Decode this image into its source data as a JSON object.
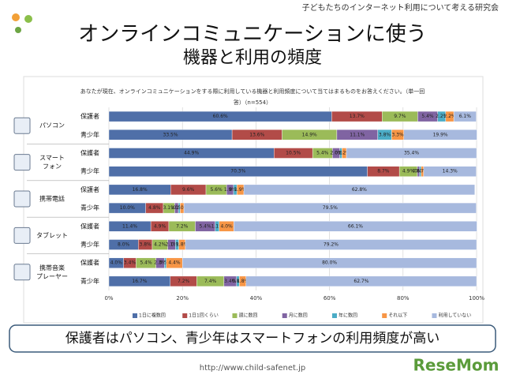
{
  "header": "子どもたちのインターネット利用について考える研究会",
  "title": [
    "オンラインコミュニケーションに使う",
    "機器と利用の頻度"
  ],
  "chart_data": {
    "type": "stacked-bar-horizontal",
    "question": [
      "あなたが現在、オンラインコミュニケーションをする際に利用している機器と利用頻度について当てはまるものをお答えください。（単一回",
      "答）（n=554）"
    ],
    "groups": [
      [
        "パソコン"
      ],
      [
        "スマート",
        "フォン"
      ],
      [
        "携帯電話"
      ],
      [
        "タブレット"
      ],
      [
        "携帯音楽",
        "プレーヤー"
      ]
    ],
    "categories": [
      "保護者",
      "青少年",
      "保護者",
      "青少年",
      "保護者",
      "青少年",
      "保護者",
      "青少年",
      "保護者",
      "青少年"
    ],
    "series": [
      {
        "name": "1日に複数回",
        "color": "#4f6fa8",
        "values": [
          60.6,
          33.5,
          44.9,
          70.3,
          16.8,
          10.0,
          11.4,
          8.0,
          4.0,
          16.7
        ],
        "value_labels": [
          "60.6%",
          "33.5%",
          "44.9%",
          "70.3%",
          "16.8%",
          "10.0%",
          "11.4%",
          "8.0%",
          "4.0%",
          "16.7%"
        ]
      },
      {
        "name": "1日1回くらい",
        "color": "#b24b48",
        "values": [
          13.7,
          13.6,
          10.5,
          8.7,
          9.6,
          4.8,
          4.9,
          3.8,
          3.4,
          7.2
        ],
        "value_labels": [
          "13.7%",
          "13.6%",
          "10.5%",
          "8.7%",
          "9.6%",
          "4.8%",
          "4.9%",
          "3.8%",
          "3.4%",
          "7.2%"
        ]
      },
      {
        "name": "週に数回",
        "color": "#9bbb59",
        "values": [
          9.7,
          14.9,
          5.4,
          4.9,
          5.6,
          3.1,
          7.2,
          4.2,
          5.4,
          7.4
        ],
        "value_labels": [
          "9.7%",
          "14.9%",
          "5.4%",
          "4.9%",
          "5.6%",
          "3.1%",
          "7.2%",
          "4.2%",
          "5.4%",
          "7.4%"
        ]
      },
      {
        "name": "月に数回",
        "color": "#8064a2",
        "values": [
          5.4,
          11.1,
          2.0,
          0.6,
          1.9,
          1.0,
          5.4,
          2.1,
          2.3,
          3.4
        ],
        "value_labels": [
          "5.4%",
          "11.1%",
          "2.0%",
          "0.6%",
          "1.9%",
          "1.0%",
          "5.4%",
          "2.1%",
          "2.3%",
          "3.4%"
        ]
      },
      {
        "name": "年に数回",
        "color": "#4bacc6",
        "values": [
          2.2,
          3.8,
          0.6,
          0.4,
          0.9,
          0.5,
          1.1,
          0.9,
          0.5,
          0.8
        ],
        "value_labels": [
          "2.2%",
          "3.8%",
          "0.6%",
          "0.4%",
          "0.9%",
          "0.5%",
          "1.1%",
          "0.9%",
          "0.5%",
          "0.8%"
        ]
      },
      {
        "name": "それ以下",
        "color": "#f79646",
        "values": [
          2.2,
          3.3,
          1.2,
          0.7,
          1.9,
          1.0,
          4.0,
          1.8,
          4.4,
          1.8
        ],
        "value_labels": [
          "2.2%",
          "3.3%",
          "1.2%",
          "0.7%",
          "1.9%",
          "1.0%",
          "4.0%",
          "1.8%",
          "4.4%",
          "1.8%"
        ]
      },
      {
        "name": "利用していない",
        "color": "#a7b9de",
        "values": [
          6.1,
          19.9,
          35.4,
          14.3,
          62.8,
          79.5,
          66.1,
          79.2,
          80.0,
          62.7
        ],
        "value_labels": [
          "6.1%",
          "19.9%",
          "35.4%",
          "14.3%",
          "62.8%",
          "79.5%",
          "66.1%",
          "79.2%",
          "80.0%",
          "62.7%"
        ]
      }
    ],
    "xlim": [
      0,
      100
    ],
    "xticks": [
      {
        "value": 0,
        "label": "0%"
      },
      {
        "value": 20,
        "label": "20%"
      },
      {
        "value": 40,
        "label": "40%"
      },
      {
        "value": 60,
        "label": "60%"
      },
      {
        "value": 80,
        "label": "80%"
      },
      {
        "value": 100,
        "label": "100%"
      }
    ]
  },
  "message": "保護者はパソコン、青少年はスマートフォンの利用頻度が高い",
  "url": "http://www.child-safenet.jp",
  "logo": "ReseMom"
}
